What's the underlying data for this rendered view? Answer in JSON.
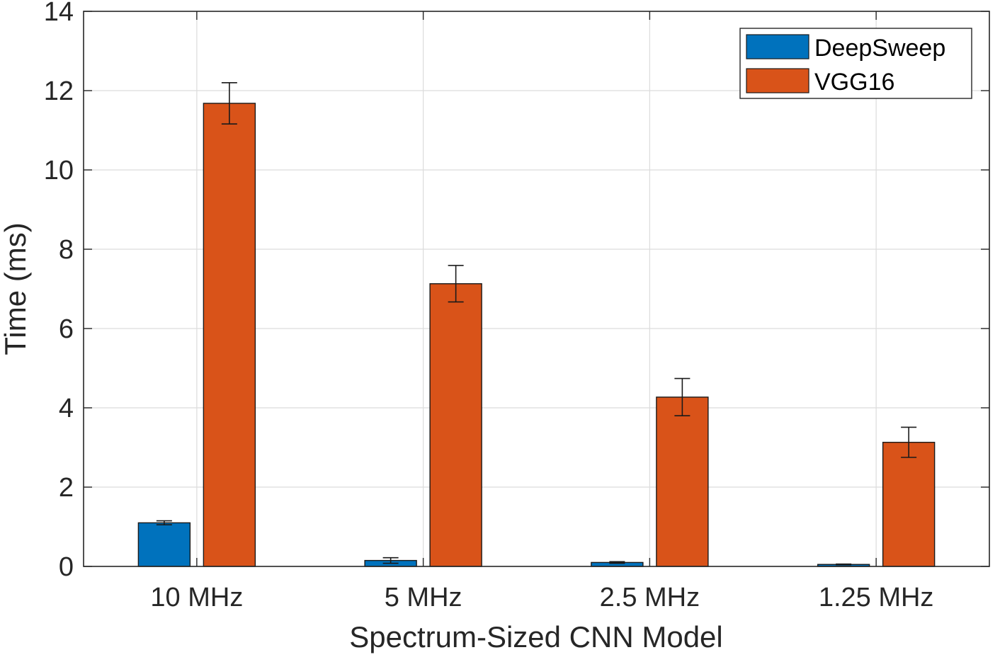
{
  "chart_data": {
    "type": "bar",
    "title": "",
    "xlabel": "Spectrum-Sized CNN Model",
    "ylabel": "Time (ms)",
    "categories": [
      "10 MHz",
      "5 MHz",
      "2.5 MHz",
      "1.25 MHz"
    ],
    "ylim": [
      0,
      14
    ],
    "yticks": [
      "0",
      "2",
      "4",
      "6",
      "8",
      "10",
      "12",
      "14"
    ],
    "grid": true,
    "legend_position": "top-right",
    "series": [
      {
        "name": "DeepSweep",
        "color": "#0072BD",
        "values": [
          1.1,
          0.15,
          0.1,
          0.05
        ],
        "error": [
          0.05,
          0.07,
          0.02,
          0.01
        ]
      },
      {
        "name": "VGG16",
        "color": "#D95319",
        "values": [
          11.68,
          7.13,
          4.27,
          3.13
        ],
        "error": [
          0.52,
          0.46,
          0.47,
          0.38
        ]
      }
    ]
  }
}
